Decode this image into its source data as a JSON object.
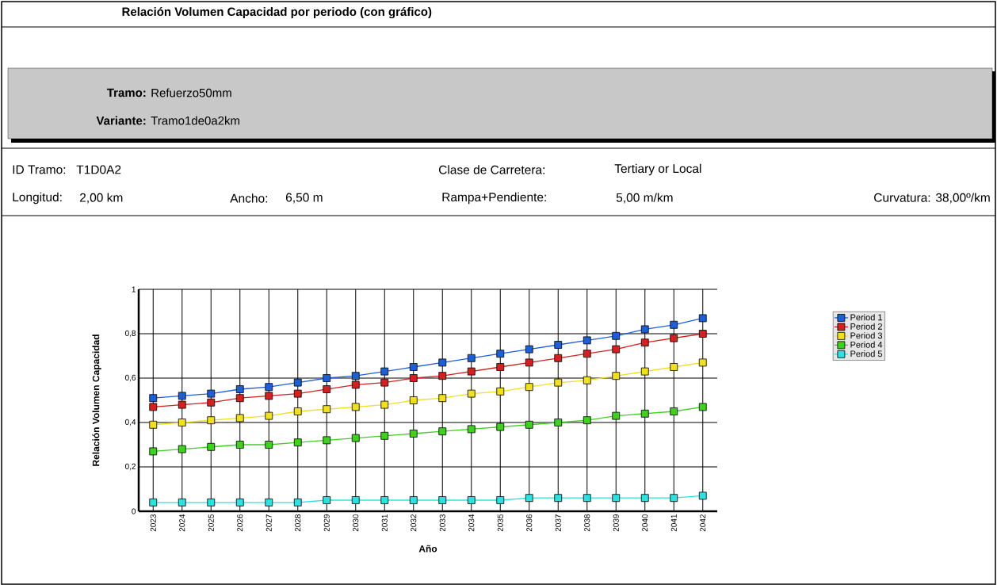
{
  "chart_data": {
    "type": "line",
    "title": "Relación Volumen Capacidad por periodo (con gráfico)",
    "annotations": [
      "**Tramo:**",
      "Refuerzo50mm",
      "**Variante:**",
      "Tramo1de0a2km",
      "ID Tramo:",
      "T1D0A2",
      "Clase de Carretera:",
      "Tertiary or Local",
      "Longitud:",
      "2,00 km",
      "Ancho:",
      "6,50 m",
      "Rampa+Pendiente:",
      "5,00 m/km",
      "Curvatura: 38,00º/km"
    ],
    "xlabel": "Año",
    "ylabel": "Relación Volumen Capacidad",
    "categories": [
      "2023",
      "2024",
      "2025",
      "2026",
      "2027",
      "2028",
      "2029",
      "2030",
      "2031",
      "2032",
      "2033",
      "2034",
      "2035",
      "2036",
      "2037",
      "2038",
      "2039",
      "2040",
      "2041",
      "2042"
    ],
    "series": [
      {
        "name": "Period 1",
        "color": "#1f5fd6",
        "values": [
          0.51,
          0.52,
          0.53,
          0.55,
          0.56,
          0.58,
          0.6,
          0.61,
          0.63,
          0.65,
          0.67,
          0.69,
          0.71,
          0.73,
          0.75,
          0.77,
          0.79,
          0.82,
          0.84,
          0.87
        ]
      },
      {
        "name": "Period 2",
        "color": "#d42020",
        "values": [
          0.47,
          0.48,
          0.49,
          0.51,
          0.52,
          0.53,
          0.55,
          0.57,
          0.58,
          0.6,
          0.61,
          0.63,
          0.65,
          0.67,
          0.69,
          0.71,
          0.73,
          0.76,
          0.78,
          0.8
        ]
      },
      {
        "name": "Period 3",
        "color": "#f0e020",
        "values": [
          0.39,
          0.4,
          0.41,
          0.42,
          0.43,
          0.45,
          0.46,
          0.47,
          0.48,
          0.5,
          0.51,
          0.53,
          0.54,
          0.56,
          0.58,
          0.59,
          0.61,
          0.63,
          0.65,
          0.67
        ]
      },
      {
        "name": "Period 4",
        "color": "#40d020",
        "values": [
          0.27,
          0.28,
          0.29,
          0.3,
          0.3,
          0.31,
          0.32,
          0.33,
          0.34,
          0.35,
          0.36,
          0.37,
          0.38,
          0.39,
          0.4,
          0.41,
          0.43,
          0.44,
          0.45,
          0.47
        ]
      },
      {
        "name": "Period 5",
        "color": "#30e0e0",
        "values": [
          0.04,
          0.04,
          0.04,
          0.04,
          0.04,
          0.04,
          0.05,
          0.05,
          0.05,
          0.05,
          0.05,
          0.05,
          0.05,
          0.06,
          0.06,
          0.06,
          0.06,
          0.06,
          0.06,
          0.07
        ]
      }
    ],
    "ylim": [
      0,
      1
    ],
    "yticks": [
      0,
      {
        "value": 0.2,
        "label": "0,2"
      },
      {
        "value": 0.4,
        "label": "0,4"
      },
      {
        "value": 0.6,
        "label": "0,6"
      },
      {
        "value": 0.8,
        "label": "0,8"
      },
      1
    ],
    "grid": true,
    "legend": "right",
    "marker": "square",
    "line_style": "solid"
  }
}
